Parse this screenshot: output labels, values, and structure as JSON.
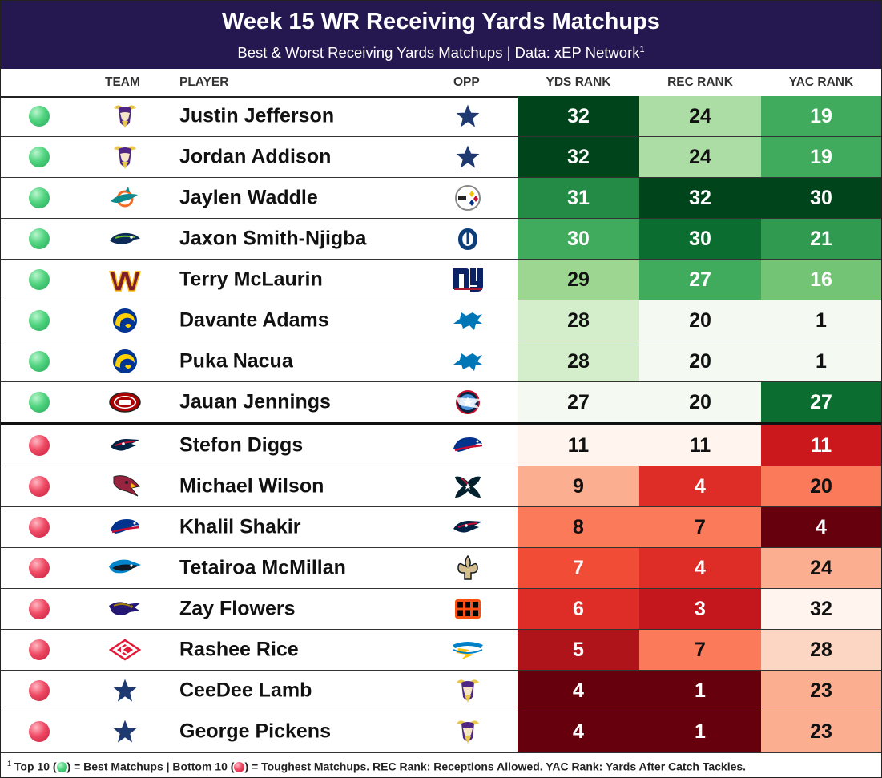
{
  "header": {
    "title": "Week 15 WR Receiving Yards Matchups",
    "subtitle": "Best & Worst Receiving Yards Matchups | Data: xEP Network",
    "subtitle_sup": "1"
  },
  "columns": {
    "team": "TEAM",
    "player": "PLAYER",
    "opp": "OPP",
    "yds": "YDS RANK",
    "rec": "REC RANK",
    "yac": "YAC RANK"
  },
  "footer": {
    "sup": "1",
    "part1": "Top 10 (",
    "part2": ") = Best Matchups | Bottom 10 (",
    "part3": ") = Toughest Matchups. REC Rank: Receptions Allowed. YAC Rank: Yards After Catch Tackles."
  },
  "colors": {
    "header_bg": "#25174f",
    "good_dot": "#3cc870",
    "bad_dot": "#e23a55"
  },
  "chart_data": {
    "type": "table",
    "columns": [
      "TEAM",
      "PLAYER",
      "OPP",
      "YDS RANK",
      "REC RANK",
      "YAC RANK"
    ],
    "rows": [
      {
        "group": "good",
        "team": "MIN",
        "player": "Justin Jefferson",
        "opp": "DAL",
        "yds": 32,
        "rec": 24,
        "yac": 19
      },
      {
        "group": "good",
        "team": "MIN",
        "player": "Jordan Addison",
        "opp": "DAL",
        "yds": 32,
        "rec": 24,
        "yac": 19
      },
      {
        "group": "good",
        "team": "MIA",
        "player": "Jaylen Waddle",
        "opp": "PIT",
        "yds": 31,
        "rec": 32,
        "yac": 30
      },
      {
        "group": "good",
        "team": "SEA",
        "player": "Jaxon Smith-Njigba",
        "opp": "IND",
        "yds": 30,
        "rec": 30,
        "yac": 21
      },
      {
        "group": "good",
        "team": "WAS",
        "player": "Terry McLaurin",
        "opp": "NYG",
        "yds": 29,
        "rec": 27,
        "yac": 16
      },
      {
        "group": "good",
        "team": "LAR",
        "player": "Davante Adams",
        "opp": "DET",
        "yds": 28,
        "rec": 20,
        "yac": 1
      },
      {
        "group": "good",
        "team": "LAR",
        "player": "Puka Nacua",
        "opp": "DET",
        "yds": 28,
        "rec": 20,
        "yac": 1
      },
      {
        "group": "good",
        "team": "SF",
        "player": "Jauan Jennings",
        "opp": "TEN",
        "yds": 27,
        "rec": 20,
        "yac": 27
      },
      {
        "group": "bad",
        "team": "NE",
        "player": "Stefon Diggs",
        "opp": "BUF",
        "yds": 11,
        "rec": 11,
        "yac": 11
      },
      {
        "group": "bad",
        "team": "ARI",
        "player": "Michael Wilson",
        "opp": "HOU",
        "yds": 9,
        "rec": 4,
        "yac": 20
      },
      {
        "group": "bad",
        "team": "BUF",
        "player": "Khalil Shakir",
        "opp": "NE",
        "yds": 8,
        "rec": 7,
        "yac": 4
      },
      {
        "group": "bad",
        "team": "CAR",
        "player": "Tetairoa McMillan",
        "opp": "NO",
        "yds": 7,
        "rec": 4,
        "yac": 24
      },
      {
        "group": "bad",
        "team": "BAL",
        "player": "Zay Flowers",
        "opp": "CIN",
        "yds": 6,
        "rec": 3,
        "yac": 32
      },
      {
        "group": "bad",
        "team": "KC",
        "player": "Rashee Rice",
        "opp": "LAC",
        "yds": 5,
        "rec": 7,
        "yac": 28
      },
      {
        "group": "bad",
        "team": "DAL",
        "player": "CeeDee Lamb",
        "opp": "MIN",
        "yds": 4,
        "rec": 1,
        "yac": 23
      },
      {
        "group": "bad",
        "team": "DAL",
        "player": "George Pickens",
        "opp": "MIN",
        "yds": 4,
        "rec": 1,
        "yac": 23
      }
    ]
  }
}
